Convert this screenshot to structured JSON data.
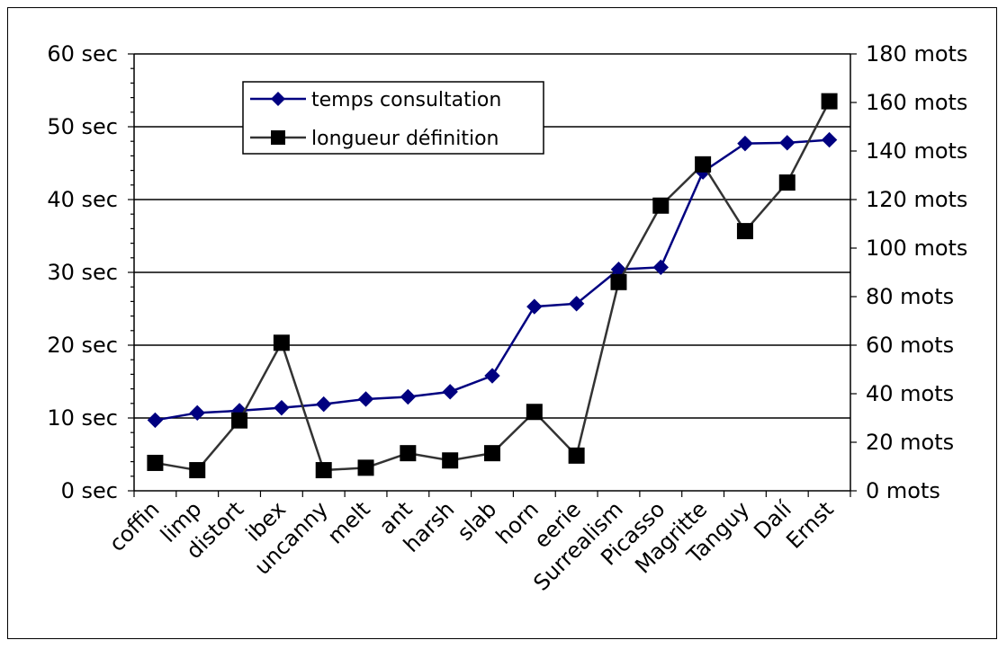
{
  "chart_data": {
    "type": "line",
    "categories": [
      "coffin",
      "limp",
      "distort",
      "ibex",
      "uncanny",
      "melt",
      "ant",
      "harsh",
      "slab",
      "horn",
      "eerie",
      "Surrealism",
      "Picasso",
      "Magritte",
      "Tanguy",
      "Dalí",
      "Ernst"
    ],
    "series": [
      {
        "name": "temps consultation",
        "axis": "left",
        "color": "#000080",
        "marker": "diamond",
        "values": [
          9.7,
          10.7,
          11.0,
          11.4,
          11.9,
          12.6,
          12.9,
          13.6,
          15.8,
          25.3,
          25.7,
          30.4,
          30.7,
          43.8,
          47.7,
          47.8,
          48.2
        ]
      },
      {
        "name": "longueur définition",
        "axis": "right",
        "color": "#333333",
        "marker": "square",
        "values": [
          11.5,
          8.5,
          29,
          61,
          8.5,
          9.5,
          15.5,
          12.5,
          15.5,
          32.5,
          14.5,
          86,
          117.5,
          134.5,
          107,
          127,
          160.5
        ]
      }
    ],
    "y_left": {
      "ylim": [
        0,
        60
      ],
      "ticks": [
        0,
        10,
        20,
        30,
        40,
        50,
        60
      ],
      "tick_labels": [
        "0 sec",
        "10 sec",
        "20 sec",
        "30 sec",
        "40 sec",
        "50 sec",
        "60 sec"
      ]
    },
    "y_right": {
      "ylim": [
        0,
        180
      ],
      "ticks": [
        0,
        20,
        40,
        60,
        80,
        100,
        120,
        140,
        160,
        180
      ],
      "tick_labels": [
        "0 mots",
        "20 mots",
        "40 mots",
        "60 mots",
        "80 mots",
        "100 mots",
        "120 mots",
        "140 mots",
        "160 mots",
        "180 mots"
      ]
    },
    "grid": "horizontal at left major ticks",
    "legend_position": "top-left inside plot",
    "title": "",
    "xlabel": "",
    "ylabel": ""
  }
}
